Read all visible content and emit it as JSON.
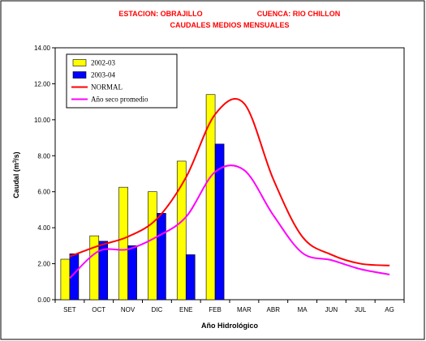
{
  "chart_data": {
    "type": "bar",
    "title_left": "ESTACION: OBRAJILLO",
    "title_right": "CUENCA: RIO CHILLON",
    "subtitle": "CAUDALES MEDIOS MENSUALES",
    "xlabel": "Año Hidrológico",
    "ylabel_parts": [
      "Caudal (m",
      "3",
      "/s)"
    ],
    "categories": [
      "SET",
      "OCT",
      "NOV",
      "DIC",
      "ENE",
      "FEB",
      "MAR",
      "ABR",
      "MA",
      "JUN",
      "JUL",
      "AG"
    ],
    "ylim": [
      0,
      14
    ],
    "yticks": [
      "0.00",
      "2.00",
      "4.00",
      "6.00",
      "8.00",
      "10.00",
      "12.00",
      "14.00"
    ],
    "grid": false,
    "legend_position": "top-left",
    "bar_series": [
      {
        "name": "2002-03",
        "color": "#ffff00",
        "values": [
          2.25,
          3.55,
          6.25,
          6.0,
          7.7,
          11.4
        ]
      },
      {
        "name": "2003-04",
        "color": "#0000ff",
        "values": [
          2.55,
          3.25,
          3.0,
          4.8,
          2.5,
          8.65
        ]
      }
    ],
    "line_series": [
      {
        "name": "NORMAL",
        "color": "#ff0000",
        "values": [
          2.4,
          3.0,
          3.5,
          4.5,
          6.8,
          10.3,
          10.9,
          6.7,
          3.5,
          2.5,
          2.0,
          1.9
        ]
      },
      {
        "name": "Año seco promedio",
        "color": "#ff00ff",
        "values": [
          1.2,
          2.7,
          2.8,
          3.5,
          4.6,
          7.1,
          7.2,
          4.7,
          2.6,
          2.2,
          1.7,
          1.4
        ]
      }
    ]
  }
}
